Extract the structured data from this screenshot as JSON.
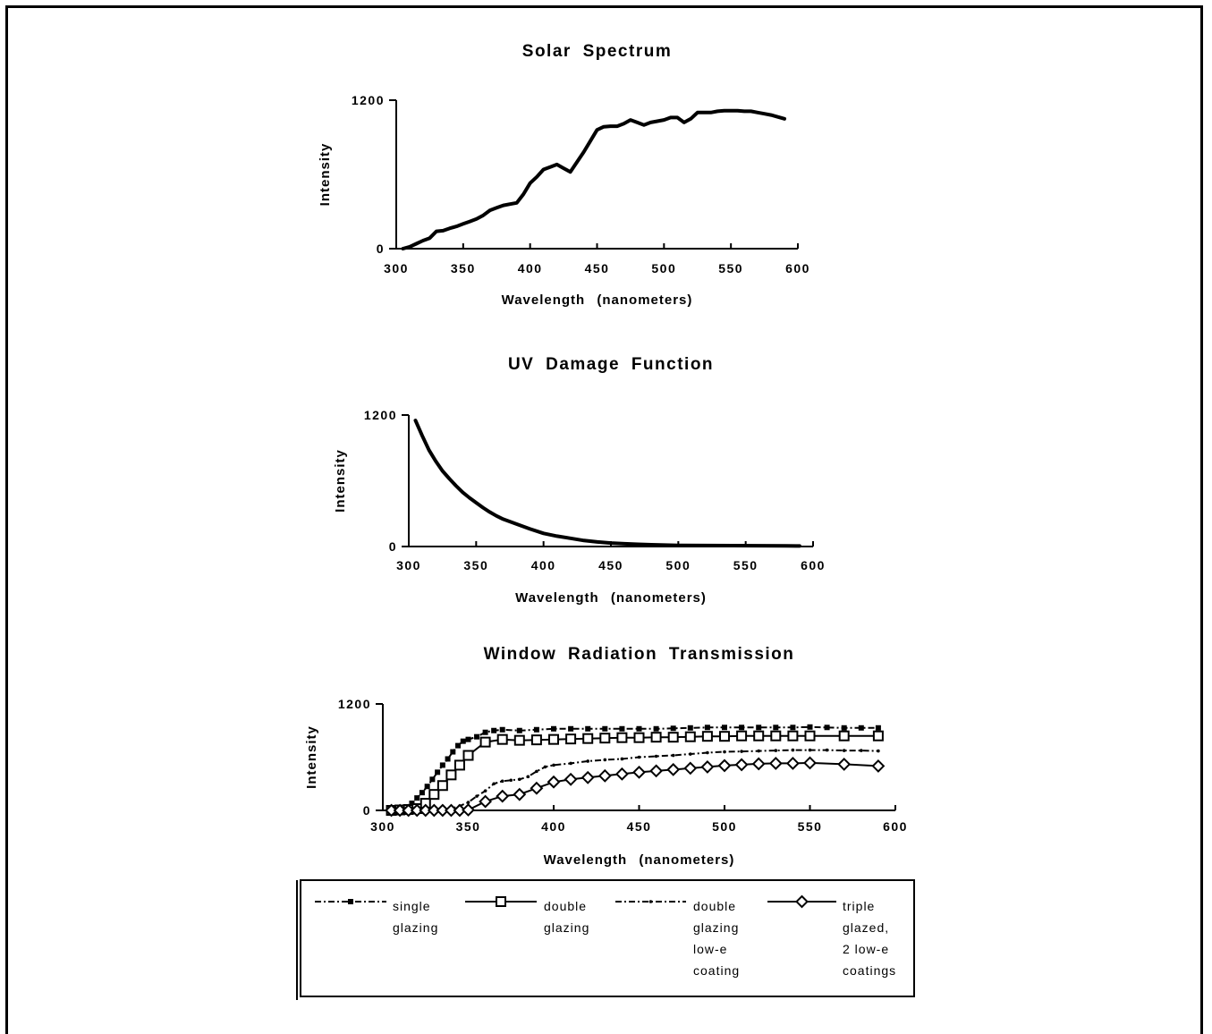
{
  "chart_data": [
    {
      "type": "line",
      "title": "Solar Spectrum",
      "xlabel": "Wavelength (nanometers)",
      "ylabel": "Intensity",
      "xlim": [
        300,
        600
      ],
      "ylim": [
        0,
        1200
      ],
      "xticks": [
        "300",
        "350",
        "400",
        "450",
        "500",
        "550",
        "600"
      ],
      "yticks": [
        "0",
        "1200"
      ],
      "grid": false,
      "series": [
        {
          "x": [
            305,
            310,
            315,
            320,
            325,
            330,
            335,
            340,
            345,
            350,
            355,
            360,
            365,
            370,
            375,
            380,
            385,
            390,
            395,
            400,
            405,
            410,
            415,
            420,
            425,
            430,
            435,
            440,
            445,
            450,
            455,
            460,
            465,
            470,
            475,
            480,
            485,
            490,
            495,
            500,
            505,
            510,
            515,
            520,
            525,
            530,
            535,
            540,
            545,
            550,
            555,
            560,
            565,
            570,
            575,
            580,
            585,
            590
          ],
          "values": [
            0,
            15,
            40,
            65,
            85,
            140,
            145,
            165,
            180,
            200,
            220,
            240,
            270,
            310,
            330,
            350,
            360,
            370,
            440,
            530,
            580,
            640,
            660,
            680,
            650,
            620,
            700,
            780,
            870,
            960,
            985,
            990,
            990,
            1010,
            1040,
            1020,
            1000,
            1020,
            1030,
            1040,
            1060,
            1060,
            1020,
            1050,
            1100,
            1100,
            1100,
            1110,
            1115,
            1115,
            1115,
            1110,
            1110,
            1100,
            1090,
            1080,
            1065,
            1050
          ]
        }
      ]
    },
    {
      "type": "line",
      "title": "UV Damage Function",
      "xlabel": "Wavelength (nanometers)",
      "ylabel": "Intensity",
      "xlim": [
        300,
        600
      ],
      "ylim": [
        0,
        1200
      ],
      "xticks": [
        "300",
        "350",
        "400",
        "450",
        "500",
        "550",
        "600"
      ],
      "yticks": [
        "0",
        "1200"
      ],
      "grid": false,
      "series": [
        {
          "x": [
            305,
            310,
            315,
            320,
            325,
            330,
            335,
            340,
            345,
            350,
            355,
            360,
            365,
            370,
            380,
            390,
            400,
            410,
            420,
            430,
            440,
            450,
            460,
            470,
            480,
            490,
            500,
            520,
            540,
            560,
            580,
            590
          ],
          "values": [
            1150,
            1010,
            880,
            780,
            690,
            620,
            555,
            495,
            445,
            400,
            355,
            315,
            280,
            250,
            205,
            160,
            120,
            95,
            75,
            55,
            42,
            32,
            25,
            20,
            16,
            13,
            11,
            9,
            8,
            7,
            6,
            5
          ]
        }
      ]
    },
    {
      "type": "line",
      "title": "Window Radiation Transmission",
      "xlabel": "Wavelength (nanometers)",
      "ylabel": "Intensity",
      "xlim": [
        300,
        600
      ],
      "ylim": [
        0,
        1200
      ],
      "xticks": [
        "300",
        "350",
        "400",
        "450",
        "500",
        "550",
        "600"
      ],
      "yticks": [
        "0",
        "1200"
      ],
      "grid": false,
      "legend": "bottom",
      "series": [
        {
          "name": "single glazing",
          "marker": "filled-square",
          "dash": "dash-dot",
          "x": [
            305,
            308,
            311,
            314,
            317,
            320,
            323,
            326,
            329,
            332,
            335,
            338,
            341,
            344,
            347,
            350,
            355,
            360,
            365,
            370,
            380,
            390,
            400,
            410,
            420,
            430,
            440,
            450,
            460,
            470,
            480,
            490,
            500,
            510,
            520,
            530,
            540,
            550,
            560,
            570,
            580,
            590
          ],
          "values": [
            0,
            10,
            20,
            40,
            80,
            140,
            200,
            270,
            350,
            430,
            510,
            580,
            660,
            730,
            780,
            800,
            830,
            880,
            900,
            910,
            900,
            910,
            920,
            920,
            920,
            920,
            920,
            920,
            920,
            925,
            930,
            935,
            935,
            935,
            935,
            935,
            935,
            940,
            935,
            930,
            930,
            930
          ]
        },
        {
          "name": "double glazing",
          "marker": "open-square",
          "dash": "solid",
          "x": [
            305,
            310,
            315,
            320,
            325,
            330,
            335,
            340,
            345,
            350,
            360,
            370,
            380,
            390,
            400,
            410,
            420,
            430,
            440,
            450,
            460,
            470,
            480,
            490,
            500,
            510,
            520,
            530,
            540,
            550,
            570,
            590
          ],
          "values": [
            0,
            5,
            10,
            20,
            80,
            180,
            280,
            400,
            510,
            620,
            770,
            800,
            790,
            795,
            800,
            805,
            810,
            815,
            820,
            820,
            825,
            825,
            830,
            835,
            835,
            840,
            840,
            840,
            840,
            840,
            840,
            840
          ]
        },
        {
          "name": "double glazing low-e coating",
          "marker": "small-dot",
          "dash": "dash-dot",
          "x": [
            305,
            310,
            320,
            330,
            340,
            345,
            350,
            355,
            360,
            365,
            370,
            375,
            380,
            385,
            390,
            395,
            400,
            410,
            420,
            430,
            440,
            450,
            460,
            470,
            480,
            490,
            500,
            510,
            520,
            530,
            540,
            550,
            560,
            570,
            580,
            590
          ],
          "values": [
            0,
            0,
            0,
            0,
            20,
            50,
            90,
            160,
            220,
            300,
            330,
            340,
            350,
            380,
            440,
            490,
            510,
            530,
            555,
            570,
            580,
            600,
            610,
            620,
            635,
            650,
            660,
            665,
            670,
            675,
            680,
            680,
            680,
            675,
            675,
            670
          ]
        },
        {
          "name": "triple glazed, 2 low-e coatings",
          "marker": "open-diamond",
          "dash": "solid",
          "x": [
            305,
            310,
            315,
            320,
            325,
            330,
            335,
            340,
            345,
            350,
            360,
            370,
            380,
            390,
            400,
            410,
            420,
            430,
            440,
            450,
            460,
            470,
            480,
            490,
            500,
            510,
            520,
            530,
            540,
            550,
            570,
            590
          ],
          "values": [
            0,
            0,
            0,
            0,
            0,
            0,
            0,
            0,
            0,
            5,
            100,
            160,
            180,
            250,
            320,
            350,
            370,
            390,
            410,
            430,
            445,
            460,
            475,
            490,
            505,
            515,
            525,
            530,
            530,
            535,
            520,
            500
          ]
        }
      ]
    }
  ],
  "legend": {
    "items": [
      {
        "lines": [
          "single",
          "glazing"
        ]
      },
      {
        "lines": [
          "double",
          "glazing"
        ]
      },
      {
        "lines": [
          "double",
          "glazing",
          "low-e",
          "coating"
        ]
      },
      {
        "lines": [
          "triple",
          "glazed,",
          "2  low-e",
          "coatings"
        ]
      }
    ]
  }
}
